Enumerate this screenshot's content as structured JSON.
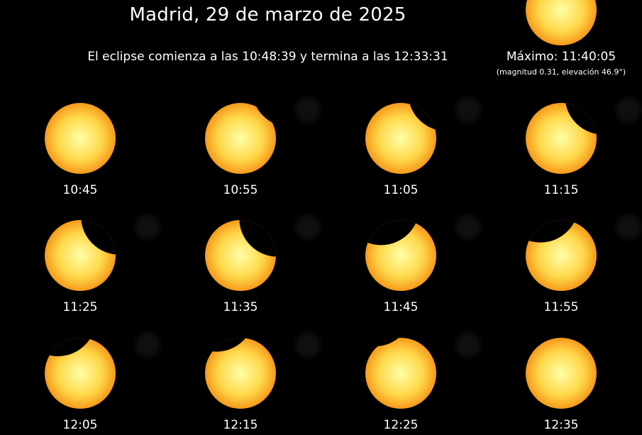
{
  "header": {
    "title": "Madrid, 29 de marzo de 2025",
    "subtitle": "El eclipse comienza a las 10:48:39 y termina a las 12:33:31"
  },
  "maximum": {
    "label": "Máximo: 11:40:05",
    "detail": "(magnitud 0.31, elevación 46.9°)",
    "coverage": 0.31
  },
  "colors": {
    "background": "#000000",
    "sun_center": "#ffffa8",
    "sun_mid": "#ffd84a",
    "sun_edge": "#f59a1a",
    "moon": "#000000"
  },
  "phases": [
    {
      "time": "10:45",
      "coverage": 0.0
    },
    {
      "time": "10:55",
      "coverage": 0.05
    },
    {
      "time": "11:05",
      "coverage": 0.13
    },
    {
      "time": "11:15",
      "coverage": 0.2
    },
    {
      "time": "11:25",
      "coverage": 0.26
    },
    {
      "time": "11:35",
      "coverage": 0.3
    },
    {
      "time": "11:45",
      "coverage": 0.3
    },
    {
      "time": "11:55",
      "coverage": 0.26
    },
    {
      "time": "12:05",
      "coverage": 0.2
    },
    {
      "time": "12:15",
      "coverage": 0.13
    },
    {
      "time": "12:25",
      "coverage": 0.05
    },
    {
      "time": "12:35",
      "coverage": 0.0
    }
  ]
}
